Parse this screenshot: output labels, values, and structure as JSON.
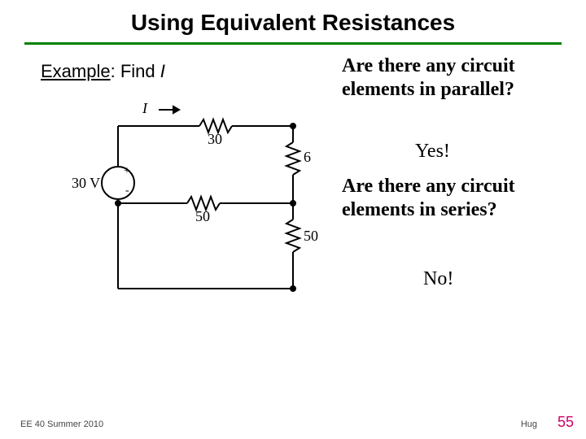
{
  "title": "Using Equivalent Resistances",
  "rule_color": "#008000",
  "example_label_html": "<u>Example</u>: Find <i>I</i>",
  "q1": "Are there any circuit elements in parallel?",
  "a1": "Yes!",
  "q2": "Are there any circuit elements in series?",
  "a2": "No!",
  "circuit": {
    "stroke": "#000000",
    "stroke_width": 2,
    "I_label": "I",
    "source_label": "30 V",
    "source_plus": "+",
    "source_minus": "-",
    "r1_label": "30",
    "r2_label": "50",
    "r3_label": "6",
    "r4_label": "50"
  },
  "footer_left": "EE 40 Summer 2010",
  "footer_right": "Hug",
  "page_number": "55",
  "page_number_color": "#cc0066"
}
